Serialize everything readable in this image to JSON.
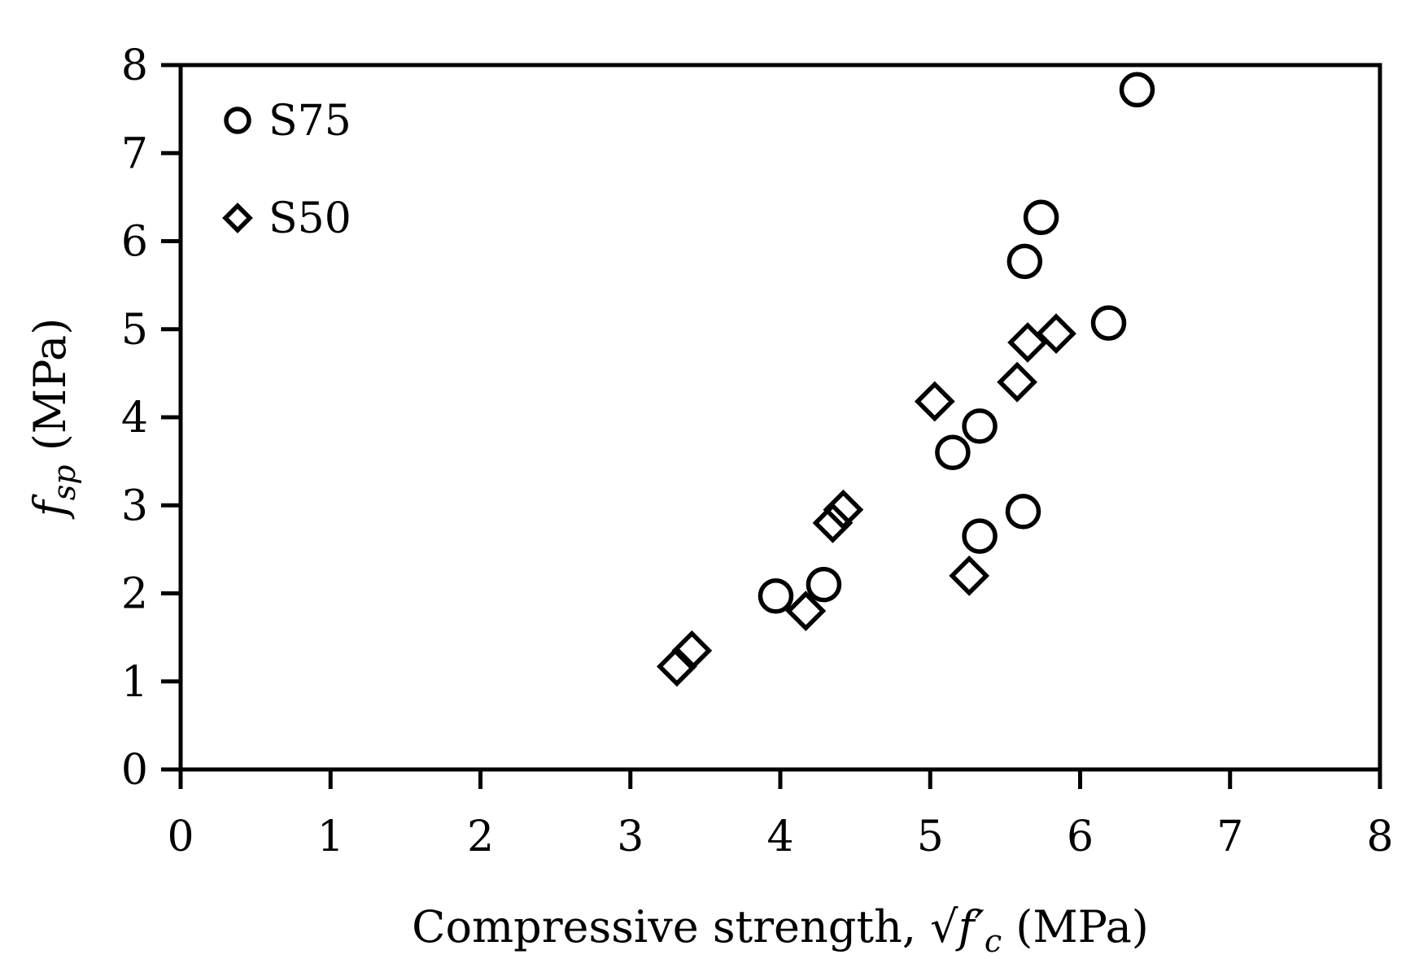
{
  "chart_data": {
    "type": "scatter",
    "title": "",
    "xlabel": {
      "prefix": "Compressive strength, √",
      "var": "f′",
      "sub": "c",
      "suffix": " (MPa)"
    },
    "ylabel": {
      "var": "f",
      "sub": "sp",
      "suffix": " (MPa)"
    },
    "xlim": [
      0,
      8
    ],
    "ylim": [
      0,
      8
    ],
    "xticks": [
      "0",
      "1",
      "2",
      "3",
      "4",
      "5",
      "6",
      "7",
      "8"
    ],
    "yticks": [
      "0",
      "1",
      "2",
      "3",
      "4",
      "5",
      "6",
      "7",
      "8"
    ],
    "grid": false,
    "legend_position": "top-left",
    "series": [
      {
        "name": "S75",
        "marker": "circle",
        "color": "#000000",
        "points": [
          {
            "x": 3.97,
            "y": 1.97
          },
          {
            "x": 4.29,
            "y": 2.1
          },
          {
            "x": 5.15,
            "y": 3.6
          },
          {
            "x": 5.33,
            "y": 3.9
          },
          {
            "x": 5.33,
            "y": 2.65
          },
          {
            "x": 5.62,
            "y": 2.93
          },
          {
            "x": 5.63,
            "y": 5.77
          },
          {
            "x": 5.74,
            "y": 6.27
          },
          {
            "x": 6.19,
            "y": 5.07
          },
          {
            "x": 6.38,
            "y": 7.72
          }
        ]
      },
      {
        "name": "S50",
        "marker": "diamond",
        "color": "#000000",
        "points": [
          {
            "x": 3.31,
            "y": 1.17
          },
          {
            "x": 3.41,
            "y": 1.35
          },
          {
            "x": 4.17,
            "y": 1.8
          },
          {
            "x": 4.35,
            "y": 2.8
          },
          {
            "x": 4.42,
            "y": 2.95
          },
          {
            "x": 5.03,
            "y": 4.18
          },
          {
            "x": 5.26,
            "y": 2.2
          },
          {
            "x": 5.58,
            "y": 4.4
          },
          {
            "x": 5.65,
            "y": 4.85
          },
          {
            "x": 5.84,
            "y": 4.95
          }
        ]
      }
    ]
  }
}
